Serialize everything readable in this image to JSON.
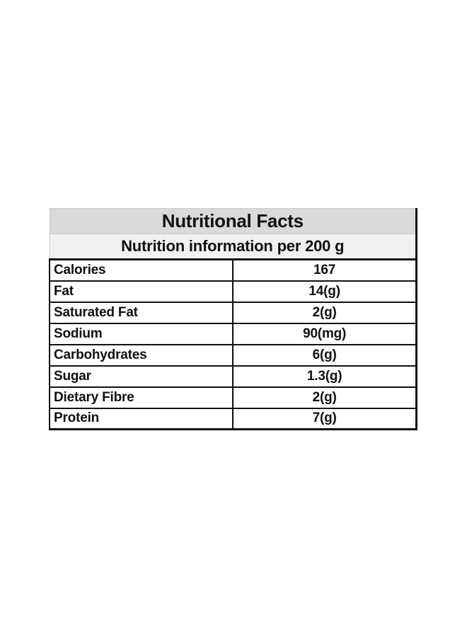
{
  "table": {
    "title": "Nutritional Facts",
    "subtitle": "Nutrition information per 200 g",
    "rows": [
      {
        "label": "Calories",
        "value": "167"
      },
      {
        "label": "Fat",
        "value": "14(g)"
      },
      {
        "label": "Saturated Fat",
        "value": "2(g)"
      },
      {
        "label": "Sodium",
        "value": "90(mg)"
      },
      {
        "label": "Carbohydrates",
        "value": "6(g)"
      },
      {
        "label": "Sugar",
        "value": "1.3(g)"
      },
      {
        "label": "Dietary Fibre",
        "value": "2(g)"
      },
      {
        "label": "Protein",
        "value": "7(g)"
      }
    ]
  }
}
